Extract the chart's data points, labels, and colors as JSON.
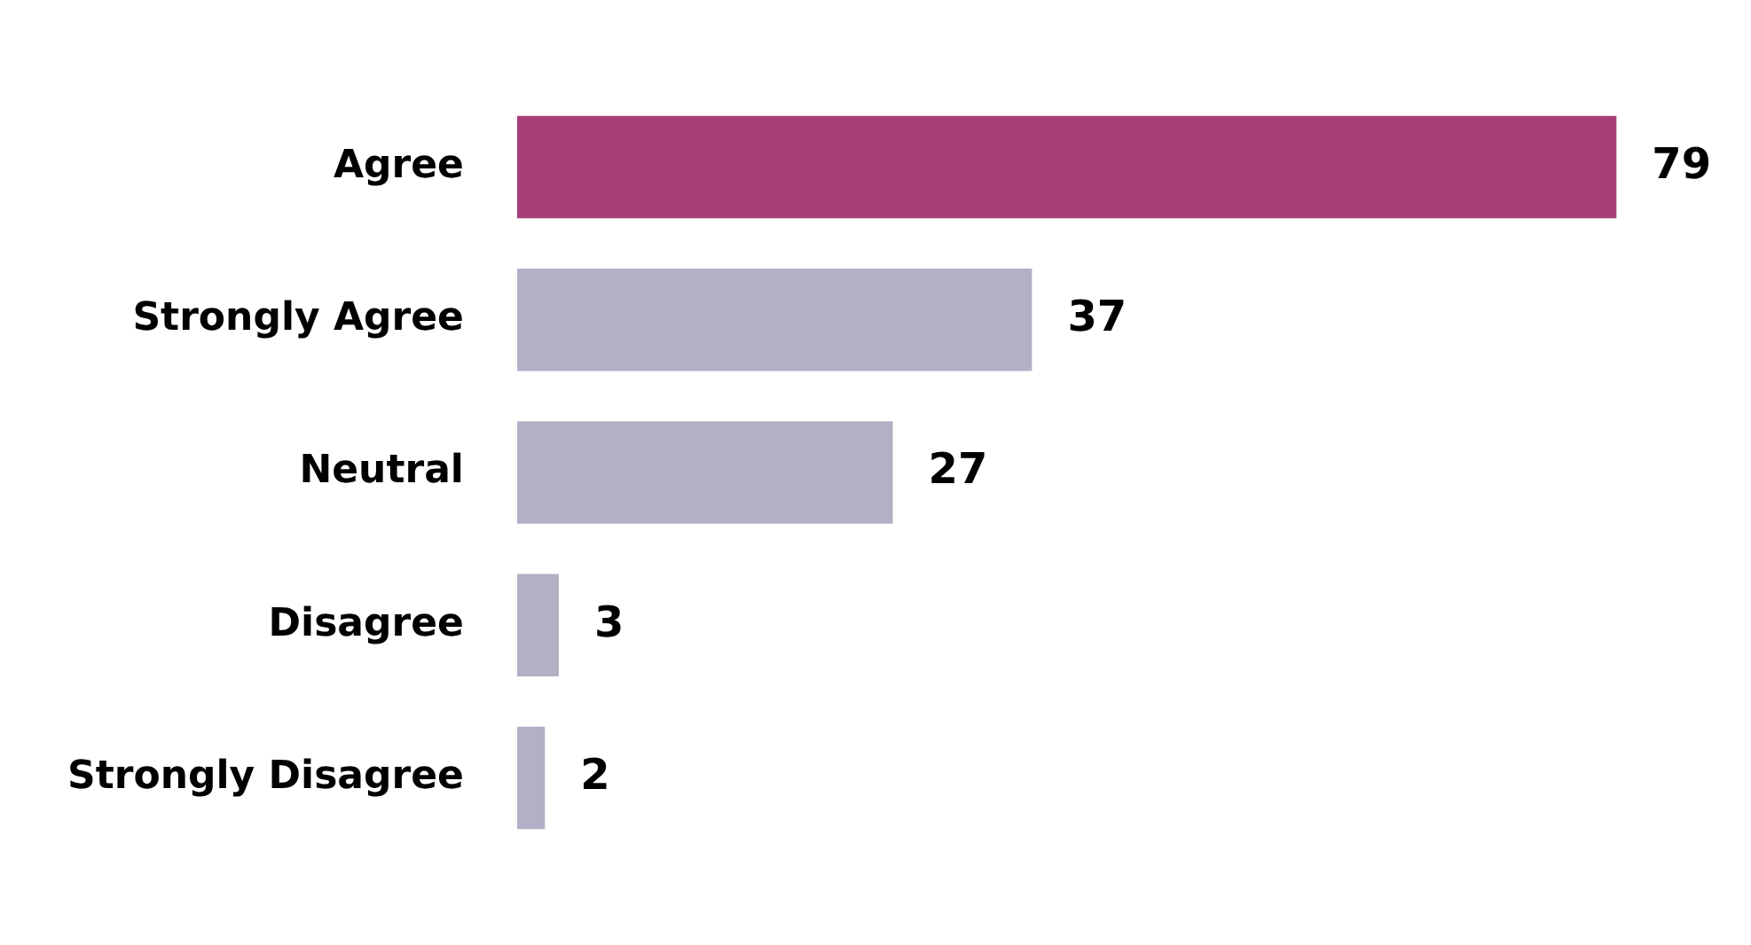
{
  "chart_data": {
    "type": "bar",
    "orientation": "horizontal",
    "categories": [
      "Agree",
      "Strongly Agree",
      "Neutral",
      "Disagree",
      "Strongly Disagree"
    ],
    "values": [
      79,
      37,
      27,
      3,
      2
    ],
    "colors": [
      "#a63f78",
      "#b2b0c4",
      "#b2b0c4",
      "#b2b0c4",
      "#b2b0c4"
    ],
    "data_labels": true,
    "legend": false
  }
}
